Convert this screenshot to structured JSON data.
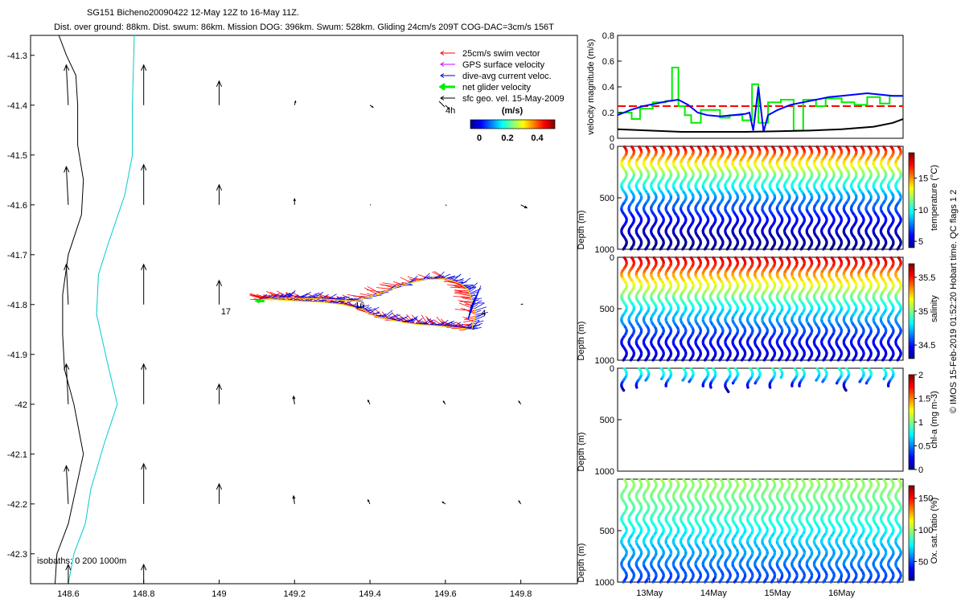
{
  "figure": {
    "title_line1": "SG151 Bicheno20090422 12-May 12Z to 16-May 11Z.",
    "title_line2": "Dist. over ground: 88km. Dist. swum: 86km. Mission DOG: 396km. Swum: 528km. Gliding 24cm/s 209T COG-DAC=3cm/s 156T",
    "side_note": "© IMOS 15-Feb-2019 01:52:20 Hobart time. QC flags 1  2"
  },
  "chart_data": [
    {
      "type": "scatter",
      "name": "map",
      "xlim": [
        148.5,
        149.95
      ],
      "ylim": [
        -42.36,
        -41.26
      ],
      "x_ticks": [
        148.6,
        148.8,
        149,
        149.2,
        149.4,
        149.6,
        149.8
      ],
      "x_tick_labels": [
        "148.6",
        "148.8",
        "149",
        "149.2",
        "149.4",
        "149.6",
        "149.8"
      ],
      "y_ticks": [
        -41.3,
        -41.4,
        -41.5,
        -41.6,
        -41.7,
        -41.8,
        -41.9,
        -42,
        -42.1,
        -42.2,
        -42.3
      ],
      "y_tick_labels": [
        "-41.3",
        "-41.4",
        "-41.5",
        "-41.6",
        "-41.7",
        "-41.8",
        "-41.9",
        "-42",
        "-42.1",
        "-42.2",
        "-42.3"
      ],
      "legend": {
        "placement": "top-right",
        "entries": [
          {
            "label": "25cm/s swim vector",
            "color": "#ff0000"
          },
          {
            "label": "GPS surface velocity",
            "color": "#cc00ff"
          },
          {
            "label": "dive-avg current veloc.",
            "color": "#0000cc"
          },
          {
            "label": "net glider velocity",
            "color": "#00ee00"
          },
          {
            "label": "sfc geo. vel. 15-May-2009",
            "color": "#000000"
          }
        ],
        "scale_arrow_label": "4h",
        "colorbar_unit": "(m/s)",
        "colorbar_ticks": [
          "0",
          "0.2",
          "0.4"
        ]
      },
      "isobath_label": "isobaths: 0   200   1000m",
      "isobaths": [
        {
          "depth": "200",
          "color": "#000000",
          "lon": [
            148.565,
            148.57,
            148.6,
            148.64,
            148.615,
            148.59,
            148.585,
            148.585,
            148.6,
            148.635,
            148.64,
            148.625,
            148.625,
            148.62,
            148.595,
            148.575
          ],
          "lat": [
            -42.36,
            -42.3,
            -42.24,
            -42.1,
            -42.0,
            -41.93,
            -41.86,
            -41.78,
            -41.7,
            -41.62,
            -41.55,
            -41.48,
            -41.4,
            -41.34,
            -41.3,
            -41.26
          ]
        },
        {
          "depth": "1000",
          "color": "#00cccc",
          "lon": [
            148.6,
            148.615,
            148.645,
            148.66,
            148.695,
            148.73,
            148.705,
            148.675,
            148.68,
            148.705,
            148.75,
            148.77,
            148.77,
            148.775
          ],
          "lat": [
            -42.36,
            -42.3,
            -42.24,
            -42.17,
            -42.08,
            -42.0,
            -41.92,
            -41.82,
            -41.74,
            -41.68,
            -41.58,
            -41.5,
            -41.4,
            -41.26
          ]
        }
      ],
      "track_labels": [
        {
          "text": "17",
          "lon": 149.005,
          "lat": -41.805
        },
        {
          "text": "16",
          "lon": 149.36,
          "lat": -41.793
        },
        {
          "text": "4",
          "lon": 149.695,
          "lat": -41.808
        }
      ],
      "geo_vectors": [
        {
          "lon": 148.6,
          "lat": -41.4,
          "u": -0.01,
          "v": 0.2
        },
        {
          "lon": 148.8,
          "lat": -41.4,
          "u": 0.0,
          "v": 0.2
        },
        {
          "lon": 149.0,
          "lat": -41.4,
          "u": 0.0,
          "v": 0.12
        },
        {
          "lon": 149.2,
          "lat": -41.4,
          "u": 0.005,
          "v": 0.02
        },
        {
          "lon": 149.4,
          "lat": -41.4,
          "u": 0.015,
          "v": -0.01
        },
        {
          "lon": 149.6,
          "lat": -41.4,
          "u": 0.02,
          "v": -0.02
        },
        {
          "lon": 148.6,
          "lat": -41.6,
          "u": -0.01,
          "v": 0.19
        },
        {
          "lon": 148.8,
          "lat": -41.6,
          "u": 0.0,
          "v": 0.2
        },
        {
          "lon": 149.0,
          "lat": -41.6,
          "u": 0.0,
          "v": 0.1
        },
        {
          "lon": 149.2,
          "lat": -41.6,
          "u": 0.0,
          "v": 0.03
        },
        {
          "lon": 149.4,
          "lat": -41.6,
          "u": 0.005,
          "v": 0.0
        },
        {
          "lon": 149.6,
          "lat": -41.6,
          "u": 0.006,
          "v": -0.003
        },
        {
          "lon": 149.8,
          "lat": -41.6,
          "u": 0.03,
          "v": -0.015
        },
        {
          "lon": 148.6,
          "lat": -41.8,
          "u": -0.01,
          "v": 0.2
        },
        {
          "lon": 148.8,
          "lat": -41.8,
          "u": 0.0,
          "v": 0.2
        },
        {
          "lon": 149.0,
          "lat": -41.8,
          "u": 0.0,
          "v": 0.12
        },
        {
          "lon": 149.8,
          "lat": -41.8,
          "u": 0.008,
          "v": 0.002
        },
        {
          "lon": 148.6,
          "lat": -42.0,
          "u": -0.01,
          "v": 0.2
        },
        {
          "lon": 148.8,
          "lat": -42.0,
          "u": 0.0,
          "v": 0.2
        },
        {
          "lon": 149.0,
          "lat": -42.0,
          "u": 0.0,
          "v": 0.1
        },
        {
          "lon": 149.2,
          "lat": -42.0,
          "u": -0.005,
          "v": 0.04
        },
        {
          "lon": 149.4,
          "lat": -42.0,
          "u": -0.01,
          "v": 0.02
        },
        {
          "lon": 149.6,
          "lat": -42.0,
          "u": -0.01,
          "v": 0.015
        },
        {
          "lon": 149.8,
          "lat": -42.0,
          "u": -0.01,
          "v": 0.015
        },
        {
          "lon": 148.6,
          "lat": -42.2,
          "u": -0.01,
          "v": 0.19
        },
        {
          "lon": 148.8,
          "lat": -42.2,
          "u": 0.0,
          "v": 0.2
        },
        {
          "lon": 149.0,
          "lat": -42.2,
          "u": 0.0,
          "v": 0.1
        },
        {
          "lon": 149.2,
          "lat": -42.2,
          "u": -0.005,
          "v": 0.04
        },
        {
          "lon": 149.4,
          "lat": -42.2,
          "u": -0.01,
          "v": 0.02
        },
        {
          "lon": 149.6,
          "lat": -42.2,
          "u": -0.015,
          "v": 0.01
        },
        {
          "lon": 149.8,
          "lat": -42.2,
          "u": -0.01,
          "v": 0.015
        },
        {
          "lon": 148.6,
          "lat": -42.37,
          "u": 0.0,
          "v": 0.12
        },
        {
          "lon": 148.8,
          "lat": -42.37,
          "u": 0.0,
          "v": 0.12
        }
      ],
      "track_loop": {
        "lon": [
          149.11,
          149.15,
          149.2,
          149.25,
          149.3,
          149.36,
          149.42,
          149.48,
          149.54,
          149.6,
          149.64,
          149.66,
          149.67,
          149.68,
          149.67,
          149.65,
          149.61,
          149.57,
          149.53,
          149.49,
          149.45,
          149.41,
          149.38,
          149.33,
          149.27,
          149.21,
          149.15,
          149.11
        ],
        "lat": [
          -41.79,
          -41.787,
          -41.787,
          -41.788,
          -41.79,
          -41.793,
          -41.78,
          -41.762,
          -41.75,
          -41.748,
          -41.758,
          -41.77,
          -41.79,
          -41.82,
          -41.85,
          -41.848,
          -41.845,
          -41.842,
          -41.84,
          -41.836,
          -41.83,
          -41.822,
          -41.81,
          -41.8,
          -41.795,
          -41.793,
          -41.79,
          -41.79
        ]
      },
      "net_velocity_arrow": {
        "lon": 149.12,
        "lat": -41.793,
        "u": -0.3,
        "v": 0.0
      }
    },
    {
      "type": "line",
      "name": "velocity",
      "ylabel": "velocity magnitude (m/s)",
      "xlim": [
        12.5,
        16.96
      ],
      "ylim": [
        0,
        0.8
      ],
      "y_ticks": [
        0,
        0.2,
        0.4,
        0.6,
        0.8
      ],
      "y_tick_labels": [
        "0",
        "0.2",
        "0.4",
        "0.6",
        "0.8"
      ],
      "reference_level": 0.25,
      "series": [
        {
          "color": "#00ee00",
          "step": true,
          "x": [
            12.5,
            12.72,
            12.72,
            12.85,
            12.85,
            13.05,
            13.05,
            13.25,
            13.25,
            13.35,
            13.35,
            13.45,
            13.45,
            13.55,
            13.55,
            13.65,
            13.65,
            13.8,
            13.8,
            14.1,
            14.1,
            14.25,
            14.25,
            14.45,
            14.45,
            14.6,
            14.6,
            14.7,
            14.7,
            14.85,
            14.85,
            15.05,
            15.05,
            15.25,
            15.25,
            15.4,
            15.4,
            15.6,
            15.6,
            15.75,
            15.75,
            16.0,
            16.0,
            16.2,
            16.2,
            16.4,
            16.4,
            16.6,
            16.6,
            16.75,
            16.75,
            16.96
          ],
          "y": [
            0.2,
            0.2,
            0.15,
            0.15,
            0.23,
            0.23,
            0.28,
            0.28,
            0.29,
            0.29,
            0.55,
            0.55,
            0.25,
            0.25,
            0.18,
            0.18,
            0.12,
            0.12,
            0.22,
            0.22,
            0.16,
            0.16,
            0.18,
            0.18,
            0.14,
            0.14,
            0.42,
            0.42,
            0.12,
            0.12,
            0.28,
            0.28,
            0.3,
            0.3,
            0.06,
            0.06,
            0.3,
            0.3,
            0.25,
            0.25,
            0.31,
            0.31,
            0.28,
            0.28,
            0.26,
            0.26,
            0.32,
            0.32,
            0.27,
            0.27,
            0.33,
            0.33
          ]
        },
        {
          "color": "#0000ff",
          "step": false,
          "x": [
            12.5,
            12.7,
            12.9,
            13.1,
            13.3,
            13.45,
            13.6,
            13.75,
            13.9,
            14.1,
            14.3,
            14.5,
            14.56,
            14.62,
            14.7,
            14.78,
            14.85,
            15.0,
            15.2,
            15.4,
            15.6,
            15.8,
            16.0,
            16.2,
            16.4,
            16.6,
            16.8,
            16.96
          ],
          "y": [
            0.18,
            0.22,
            0.25,
            0.27,
            0.29,
            0.3,
            0.26,
            0.2,
            0.18,
            0.17,
            0.18,
            0.19,
            0.2,
            0.06,
            0.4,
            0.05,
            0.18,
            0.22,
            0.26,
            0.28,
            0.3,
            0.32,
            0.33,
            0.34,
            0.35,
            0.34,
            0.33,
            0.33
          ]
        },
        {
          "color": "#000000",
          "step": false,
          "x": [
            12.5,
            13.0,
            13.5,
            14.0,
            14.5,
            15.0,
            15.5,
            16.0,
            16.5,
            16.8,
            16.96
          ],
          "y": [
            0.07,
            0.06,
            0.05,
            0.05,
            0.05,
            0.055,
            0.06,
            0.07,
            0.09,
            0.12,
            0.15
          ]
        }
      ]
    },
    {
      "type": "heatmap",
      "name": "temperature",
      "ylabel": "Depth (m)",
      "colorbar_label": "temperature (°C)",
      "colorbar_range": [
        4,
        19
      ],
      "colorbar_ticks": [
        5,
        10,
        15
      ],
      "colorbar_tick_labels": [
        "5",
        "10",
        "15"
      ],
      "ylim": [
        0,
        1000
      ],
      "y_tick_labels": [
        "0",
        "500",
        "1000"
      ],
      "profile": {
        "depth": [
          0,
          100,
          200,
          300,
          400,
          500,
          600,
          700,
          800,
          900,
          1000
        ],
        "value": [
          18,
          15,
          13,
          11,
          9.5,
          8,
          7,
          6,
          5.2,
          4.6,
          4.2
        ]
      },
      "max_depth": 1000,
      "coverage": "full"
    },
    {
      "type": "heatmap",
      "name": "salinity",
      "ylabel": "Depth (m)",
      "colorbar_label": "salinity",
      "colorbar_range": [
        34.3,
        35.7
      ],
      "colorbar_ticks": [
        34.5,
        35,
        35.5
      ],
      "colorbar_tick_labels": [
        "34.5",
        "35",
        "35.5"
      ],
      "ylim": [
        0,
        1000
      ],
      "y_tick_labels": [
        "0",
        "500",
        "1000"
      ],
      "profile": {
        "depth": [
          0,
          100,
          200,
          300,
          400,
          500,
          600,
          700,
          800,
          900,
          1000
        ],
        "value": [
          35.6,
          35.45,
          35.25,
          35.1,
          34.95,
          34.8,
          34.7,
          34.6,
          34.5,
          34.45,
          34.4
        ]
      },
      "max_depth": 1000,
      "coverage": "full"
    },
    {
      "type": "heatmap",
      "name": "chla",
      "ylabel": "Depth (m)",
      "colorbar_label": "chl-a (mg m-3)",
      "colorbar_range": [
        0,
        2
      ],
      "colorbar_ticks": [
        0,
        0.5,
        1,
        1.5,
        2
      ],
      "colorbar_tick_labels": [
        "0",
        "0.5",
        "1",
        "1.5",
        "2"
      ],
      "ylim": [
        0,
        1000
      ],
      "y_tick_labels": [
        "0",
        "500",
        "1000"
      ],
      "profile": {
        "depth": [
          0,
          50,
          100,
          150,
          200
        ],
        "value": [
          0.85,
          0.75,
          0.6,
          0.3,
          0.1
        ]
      },
      "max_depth": 200,
      "coverage": "partial"
    },
    {
      "type": "heatmap",
      "name": "oxygen",
      "ylabel": "Depth (m)",
      "colorbar_label": "Ox. sat. ratio (%)",
      "colorbar_range": [
        20,
        170
      ],
      "colorbar_ticks": [
        50,
        100,
        150
      ],
      "colorbar_tick_labels": [
        "50",
        "100",
        "150"
      ],
      "ylim": [
        0,
        1000
      ],
      "y_tick_labels": [
        "500",
        "1000"
      ],
      "x_tick_labels": [
        "13May",
        "14May",
        "15May",
        "16May"
      ],
      "profile": {
        "depth": [
          0,
          100,
          200,
          300,
          400,
          500,
          600,
          700,
          800,
          900,
          1000
        ],
        "value": [
          100,
          96,
          92,
          88,
          82,
          76,
          70,
          64,
          58,
          52,
          48
        ]
      },
      "max_depth": 1000,
      "coverage": "full"
    }
  ]
}
